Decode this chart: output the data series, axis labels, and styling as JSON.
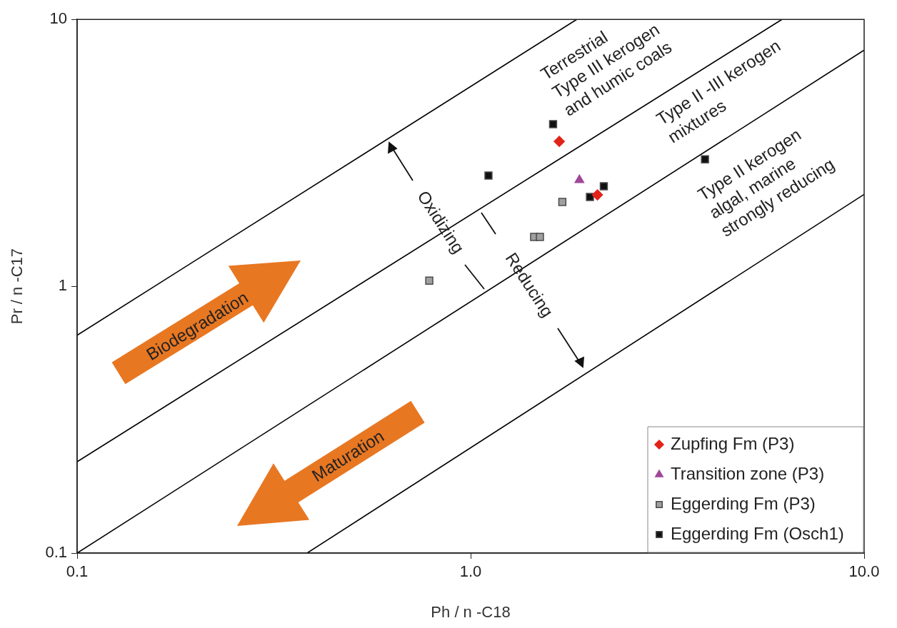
{
  "chart_data": {
    "type": "scatter",
    "xlabel": "Ph / n -C18",
    "ylabel": "Pr / n -C17",
    "log": "xy",
    "xlim": [
      0.1,
      10
    ],
    "ylim": [
      0.1,
      10
    ],
    "xticks": [
      0.1,
      {
        "value": 1,
        "label": "1.0"
      },
      {
        "value": 10,
        "label": "10.0"
      }
    ],
    "yticks": [
      0.1,
      1,
      10
    ],
    "legend": "bottom right",
    "series": [
      {
        "type": "line",
        "color": "#000000",
        "marker": "none",
        "x": [
          0.1,
          1.86
        ],
        "values": [
          0.655,
          10
        ]
      },
      {
        "type": "line",
        "color": "#000000",
        "marker": "none",
        "x": [
          0.1,
          6.18
        ],
        "values": [
          0.22,
          10
        ]
      },
      {
        "type": "line",
        "color": "#000000",
        "marker": "none",
        "x": [
          0.1,
          10
        ],
        "values": [
          0.1,
          7.67
        ]
      },
      {
        "type": "line",
        "color": "#000000",
        "marker": "none",
        "x": [
          0.384,
          10
        ],
        "values": [
          0.1,
          2.21
        ]
      },
      {
        "name": "Zupfing Fm (P3)",
        "color": "#e2231a",
        "marker": "diamond",
        "x": [
          1.68,
          2.1
        ],
        "values": [
          3.49,
          2.2
        ]
      },
      {
        "name": "Transition zone (P3)",
        "color": "#a0479a",
        "marker": "triangle",
        "x": [
          1.89
        ],
        "values": [
          2.5
        ]
      },
      {
        "name": "Eggerding Fm (P3)",
        "color": "#a0a0a0",
        "marker": "square",
        "x": [
          1.71,
          1.45,
          1.5,
          0.785
        ],
        "values": [
          2.07,
          1.53,
          1.53,
          1.05
        ]
      },
      {
        "name": "Eggerding Fm (Osch1)",
        "color": "#111111",
        "marker": "square",
        "x": [
          1.62,
          1.11,
          3.94,
          2.18,
          2.01
        ],
        "values": [
          4.05,
          2.6,
          2.99,
          2.37,
          2.16
        ]
      }
    ],
    "annotations": [
      "Terrestrial\nType III kerogen\nand humic coals",
      "Type II -III kerogen\nmixtures",
      "Type II kerogen\nalgal, marine\nstrongly reducing",
      "Oxidizing",
      "Reducing",
      "Biodegradation",
      "Maturation"
    ]
  }
}
